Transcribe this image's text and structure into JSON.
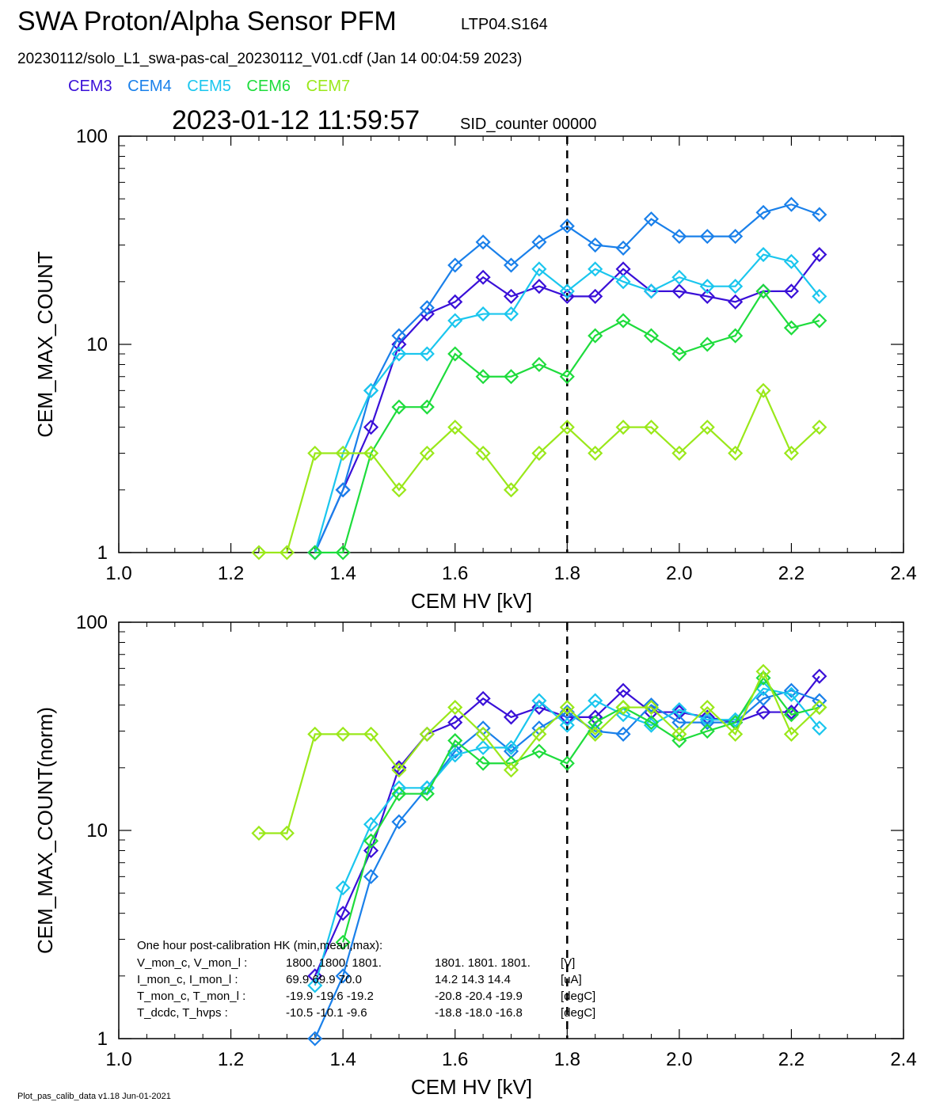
{
  "header": {
    "title": "SWA Proton/Alpha Sensor PFM",
    "run_id": "LTP04.S164",
    "file_line": "20230112/solo_L1_swa-pas-cal_20230112_V01.cdf  (Jan 14 00:04:59 2023)",
    "timestamp": "2023-01-12 11:59:57",
    "sid": "SID_counter 00000"
  },
  "legend": [
    {
      "name": "CEM3",
      "color": "#3a10d8"
    },
    {
      "name": "CEM4",
      "color": "#1a80ea"
    },
    {
      "name": "CEM5",
      "color": "#1ac6ee"
    },
    {
      "name": "CEM6",
      "color": "#1edc3c"
    },
    {
      "name": "CEM7",
      "color": "#9ae81a"
    }
  ],
  "info_box": {
    "heading": "One hour post-calibration HK (min,mean,max):",
    "rows": [
      [
        "V_mon_c, V_mon_l :",
        "1800.  1800.  1801.",
        "1801.  1801.  1801.",
        "[V]"
      ],
      [
        "I_mon_c, I_mon_l :",
        "69.9   69.9   70.0",
        "14.2   14.3   14.4",
        "[uA]"
      ],
      [
        "T_mon_c, T_mon_l :",
        "-19.9  -19.6  -19.2",
        "-20.8  -20.4  -19.9",
        "[degC]"
      ],
      [
        "T_dcdc,    T_hvps :",
        "-10.5  -10.1   -9.6",
        "-18.8  -18.0  -16.8",
        "[degC]"
      ]
    ]
  },
  "footer": "Plot_pas_calib_data v1.18 Jun-01-2021",
  "chart_data": [
    {
      "type": "line",
      "xlabel": "CEM HV [kV]",
      "ylabel": "CEM_MAX_COUNT",
      "xlim": [
        1.0,
        2.4
      ],
      "ylim": [
        1,
        100
      ],
      "yscale": "log",
      "xticks": [
        "1.0",
        "1.2",
        "1.4",
        "1.6",
        "1.8",
        "2.0",
        "2.2",
        "2.4"
      ],
      "yticks": [
        "1",
        "10",
        "100"
      ],
      "vline_x": 1.8,
      "marker": "diamond",
      "x": [
        1.25,
        1.3,
        1.35,
        1.4,
        1.45,
        1.5,
        1.55,
        1.6,
        1.65,
        1.7,
        1.75,
        1.8,
        1.85,
        1.9,
        1.95,
        2.0,
        2.05,
        2.1,
        2.15,
        2.2,
        2.25
      ],
      "series": [
        {
          "name": "CEM3",
          "values": [
            null,
            null,
            1,
            2,
            4,
            10,
            14,
            16,
            21,
            17,
            19,
            17,
            17,
            23,
            18,
            18,
            17,
            16,
            18,
            18,
            27
          ]
        },
        {
          "name": "CEM4",
          "values": [
            null,
            null,
            1,
            2,
            6,
            11,
            15,
            24,
            31,
            24,
            31,
            37,
            30,
            29,
            40,
            33,
            33,
            33,
            43,
            47,
            42
          ]
        },
        {
          "name": "CEM5",
          "values": [
            null,
            null,
            1,
            3,
            6,
            9,
            9,
            13,
            14,
            14,
            23,
            18,
            23,
            20,
            18,
            21,
            19,
            19,
            27,
            25,
            17
          ]
        },
        {
          "name": "CEM6",
          "values": [
            null,
            null,
            1,
            1,
            3,
            5,
            5,
            9,
            7,
            7,
            8,
            7,
            11,
            13,
            11,
            9,
            10,
            11,
            18,
            12,
            13
          ]
        },
        {
          "name": "CEM7",
          "values": [
            1,
            1,
            3,
            3,
            3,
            2,
            3,
            4,
            3,
            2,
            3,
            4,
            3,
            4,
            4,
            3,
            4,
            3,
            6,
            3,
            4
          ]
        }
      ]
    },
    {
      "type": "line",
      "xlabel": "CEM HV [kV]",
      "ylabel": "CEM_MAX_COUNT(norm)",
      "xlim": [
        1.0,
        2.4
      ],
      "ylim": [
        1,
        100
      ],
      "yscale": "log",
      "xticks": [
        "1.0",
        "1.2",
        "1.4",
        "1.6",
        "1.8",
        "2.0",
        "2.2",
        "2.4"
      ],
      "yticks": [
        "1",
        "10",
        "100"
      ],
      "vline_x": 1.8,
      "marker": "diamond",
      "x": [
        1.25,
        1.3,
        1.35,
        1.4,
        1.45,
        1.5,
        1.55,
        1.6,
        1.65,
        1.7,
        1.75,
        1.8,
        1.85,
        1.9,
        1.95,
        2.0,
        2.05,
        2.1,
        2.15,
        2.2,
        2.25
      ],
      "series": [
        {
          "name": "CEM3",
          "values": [
            null,
            null,
            2,
            4,
            8,
            20,
            29,
            33,
            43,
            35,
            39,
            35,
            35,
            47,
            37,
            37,
            35,
            33,
            37,
            37,
            55
          ]
        },
        {
          "name": "CEM4",
          "values": [
            null,
            null,
            1,
            2,
            6,
            11,
            16,
            24,
            31,
            24,
            31,
            37,
            30,
            29,
            40,
            33,
            33,
            33,
            43,
            47,
            42
          ]
        },
        {
          "name": "CEM5",
          "values": [
            null,
            null,
            1.8,
            5.3,
            10.7,
            16,
            16,
            23,
            25,
            25,
            42,
            32,
            42,
            36,
            32,
            38,
            34,
            34,
            48,
            45,
            31
          ]
        },
        {
          "name": "CEM6",
          "values": [
            null,
            null,
            null,
            2.9,
            8.9,
            15,
            15,
            27,
            21,
            21,
            24,
            21,
            33,
            39,
            33,
            27,
            30,
            33,
            54,
            36,
            39
          ]
        },
        {
          "name": "CEM7",
          "values": [
            9.7,
            9.7,
            29,
            29,
            29,
            19.5,
            29,
            39,
            29,
            19.5,
            29,
            39,
            29,
            39,
            39,
            29,
            39,
            29,
            58,
            29,
            39
          ]
        }
      ]
    }
  ]
}
